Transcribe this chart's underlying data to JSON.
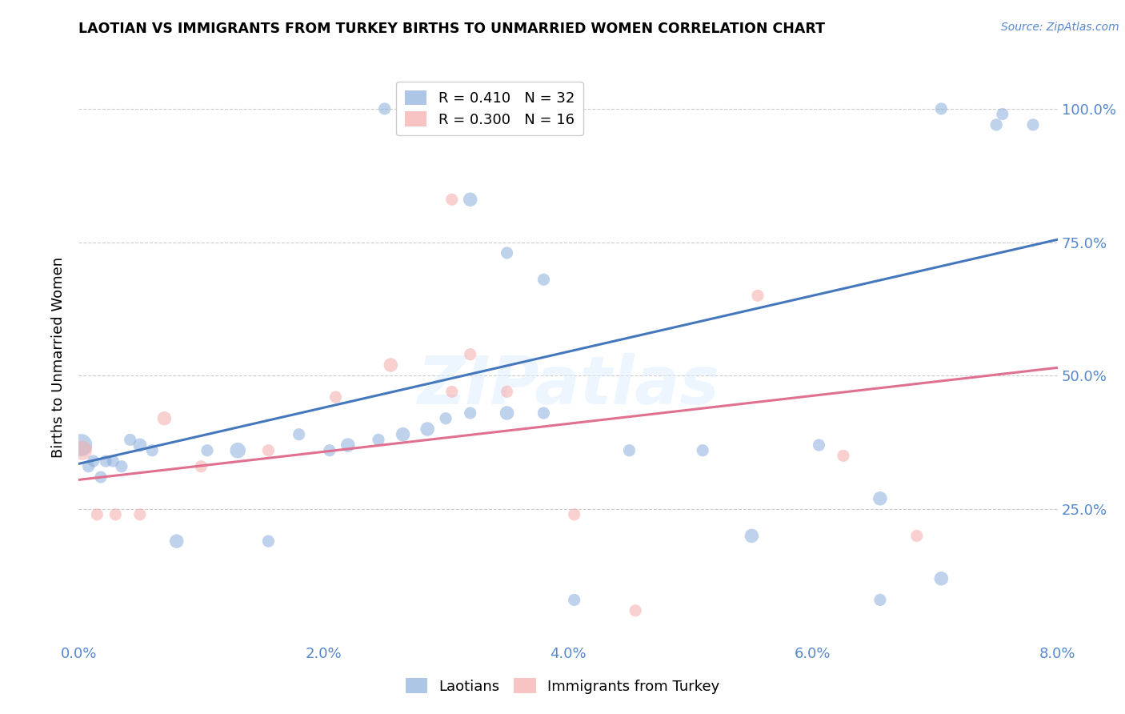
{
  "title": "LAOTIAN VS IMMIGRANTS FROM TURKEY BIRTHS TO UNMARRIED WOMEN CORRELATION CHART",
  "source": "Source: ZipAtlas.com",
  "ylabel": "Births to Unmarried Women",
  "watermark": "ZIPatlas",
  "legend_blue_r": "R = 0.410",
  "legend_blue_n": "N = 32",
  "legend_pink_r": "R = 0.300",
  "legend_pink_n": "N = 16",
  "blue_color": "#8AAEDC",
  "pink_color": "#F4AAAA",
  "blue_line_color": "#4477BB",
  "pink_line_color": "#E07090",
  "tick_color": "#5588CC",
  "blue_points": {
    "x": [
      0.02,
      0.08,
      0.12,
      0.18,
      0.22,
      0.28,
      0.35,
      0.42,
      0.5,
      0.6,
      0.8,
      1.05,
      1.3,
      1.55,
      1.8,
      2.05,
      2.2,
      2.45,
      2.65,
      2.85,
      3.0,
      3.2,
      3.5,
      3.8,
      4.5,
      5.1,
      5.5,
      6.05,
      6.55,
      7.05,
      7.5,
      7.8
    ],
    "y": [
      37,
      33,
      34,
      31,
      34,
      34,
      33,
      38,
      37,
      36,
      19,
      36,
      36,
      19,
      39,
      36,
      37,
      38,
      39,
      40,
      42,
      43,
      43,
      43,
      36,
      36,
      20,
      37,
      27,
      12,
      97,
      97
    ],
    "size": [
      400,
      120,
      120,
      120,
      120,
      120,
      120,
      120,
      150,
      120,
      160,
      120,
      200,
      120,
      120,
      120,
      160,
      120,
      160,
      160,
      120,
      120,
      160,
      120,
      120,
      120,
      160,
      120,
      160,
      160,
      120,
      120
    ]
  },
  "blue_high_points": {
    "x": [
      2.5,
      3.2,
      3.5,
      3.8,
      7.05,
      7.55
    ],
    "y": [
      100,
      83,
      73,
      68,
      100,
      99
    ],
    "size": [
      120,
      160,
      120,
      120,
      120,
      120
    ]
  },
  "blue_low_points": {
    "x": [
      4.05,
      6.55
    ],
    "y": [
      8,
      8
    ],
    "size": [
      120,
      120
    ]
  },
  "pink_points": {
    "x": [
      0.03,
      0.15,
      0.3,
      0.5,
      0.7,
      1.0,
      1.55,
      2.1,
      2.55,
      3.05,
      3.5,
      4.05,
      5.55,
      6.25,
      6.85,
      4.55
    ],
    "y": [
      36,
      24,
      24,
      24,
      42,
      33,
      36,
      46,
      52,
      47,
      47,
      24,
      65,
      35,
      20,
      6
    ],
    "size": [
      300,
      120,
      120,
      120,
      160,
      120,
      120,
      120,
      160,
      120,
      120,
      120,
      120,
      120,
      120,
      120
    ]
  },
  "pink_high_points": {
    "x": [
      3.05,
      3.2
    ],
    "y": [
      83,
      54
    ],
    "size": [
      120,
      120
    ]
  },
  "blue_line": {
    "x0": 0.0,
    "y0": 33.5,
    "x1": 8.0,
    "y1": 75.5
  },
  "pink_line": {
    "x0": 0.0,
    "y0": 30.5,
    "x1": 8.0,
    "y1": 51.5
  },
  "xlim": [
    0.0,
    8.0
  ],
  "ylim": [
    0.0,
    107.0
  ],
  "xticks": [
    0,
    2,
    4,
    6,
    8
  ],
  "xticklabels": [
    "0.0%",
    "2.0%",
    "4.0%",
    "6.0%",
    "8.0%"
  ],
  "yticks": [
    25,
    50,
    75,
    100
  ],
  "yticklabels": [
    "25.0%",
    "50.0%",
    "75.0%",
    "100.0%"
  ]
}
